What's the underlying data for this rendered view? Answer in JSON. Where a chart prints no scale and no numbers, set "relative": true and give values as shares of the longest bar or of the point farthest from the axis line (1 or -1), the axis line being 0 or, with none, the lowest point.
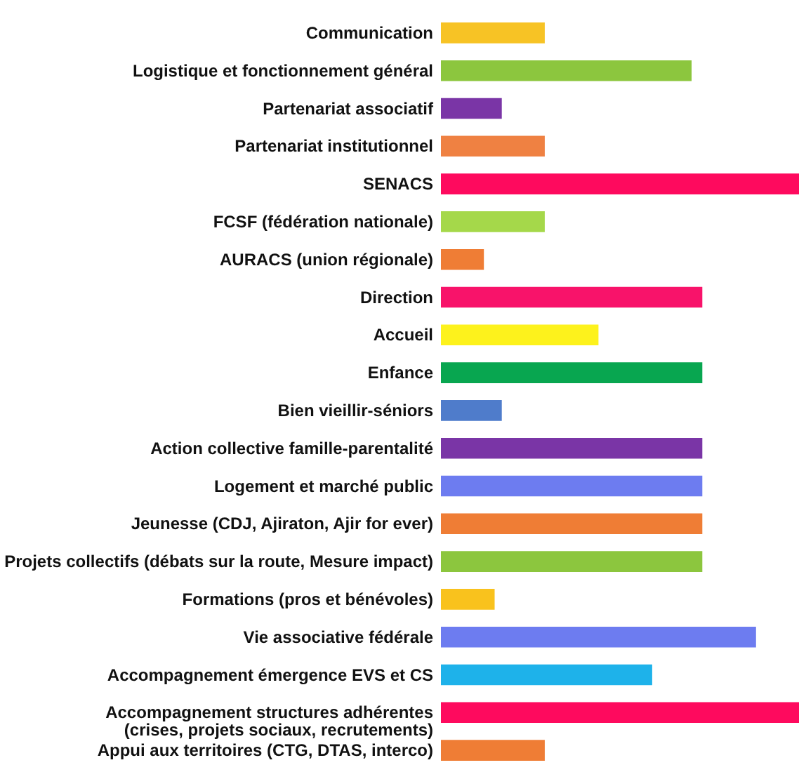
{
  "chart_data": {
    "type": "bar",
    "orientation": "horizontal",
    "relative": true,
    "categories": [
      "Communication",
      "Logistique et fonctionnement général",
      "Partenariat associatif",
      "Partenariat institutionnel",
      "SENACS",
      "FCSF (fédération nationale)",
      "AURACS (union régionale)",
      "Direction",
      "Accueil",
      "Enfance",
      "Bien vieillir-séniors",
      "Action collective famille-parentalité",
      "Logement et marché public",
      "Jeunesse (CDJ, Ajiraton, Ajir for ever)",
      "Projets collectifs (débats sur la route, Mesure impact)",
      "Formations (pros et bénévoles)",
      "Vie associative fédérale",
      "Accompagnement émergence EVS et CS",
      "Accompagnement structures adhérentes\n(crises,  projets sociaux, recrutements)",
      "Appui aux territoires (CTG, DTAS, interco)"
    ],
    "values": [
      0.29,
      0.7,
      0.17,
      0.29,
      1,
      0.29,
      0.12,
      0.73,
      0.44,
      0.73,
      0.17,
      0.73,
      0.73,
      0.73,
      0.73,
      0.15,
      0.88,
      0.59,
      1,
      0.29
    ],
    "colors": [
      "#f7c325",
      "#8cc63e",
      "#7a35a6",
      "#ef8142",
      "#fe0a5e",
      "#a5d84a",
      "#ef7d35",
      "#f8136a",
      "#fdf21c",
      "#08a650",
      "#4f7ccb",
      "#7a35a6",
      "#6d7cf0",
      "#ef7d35",
      "#8cc63e",
      "#f9c21d",
      "#6d7cf0",
      "#1eb2ea",
      "#fe0a5e",
      "#ef7d35"
    ]
  }
}
